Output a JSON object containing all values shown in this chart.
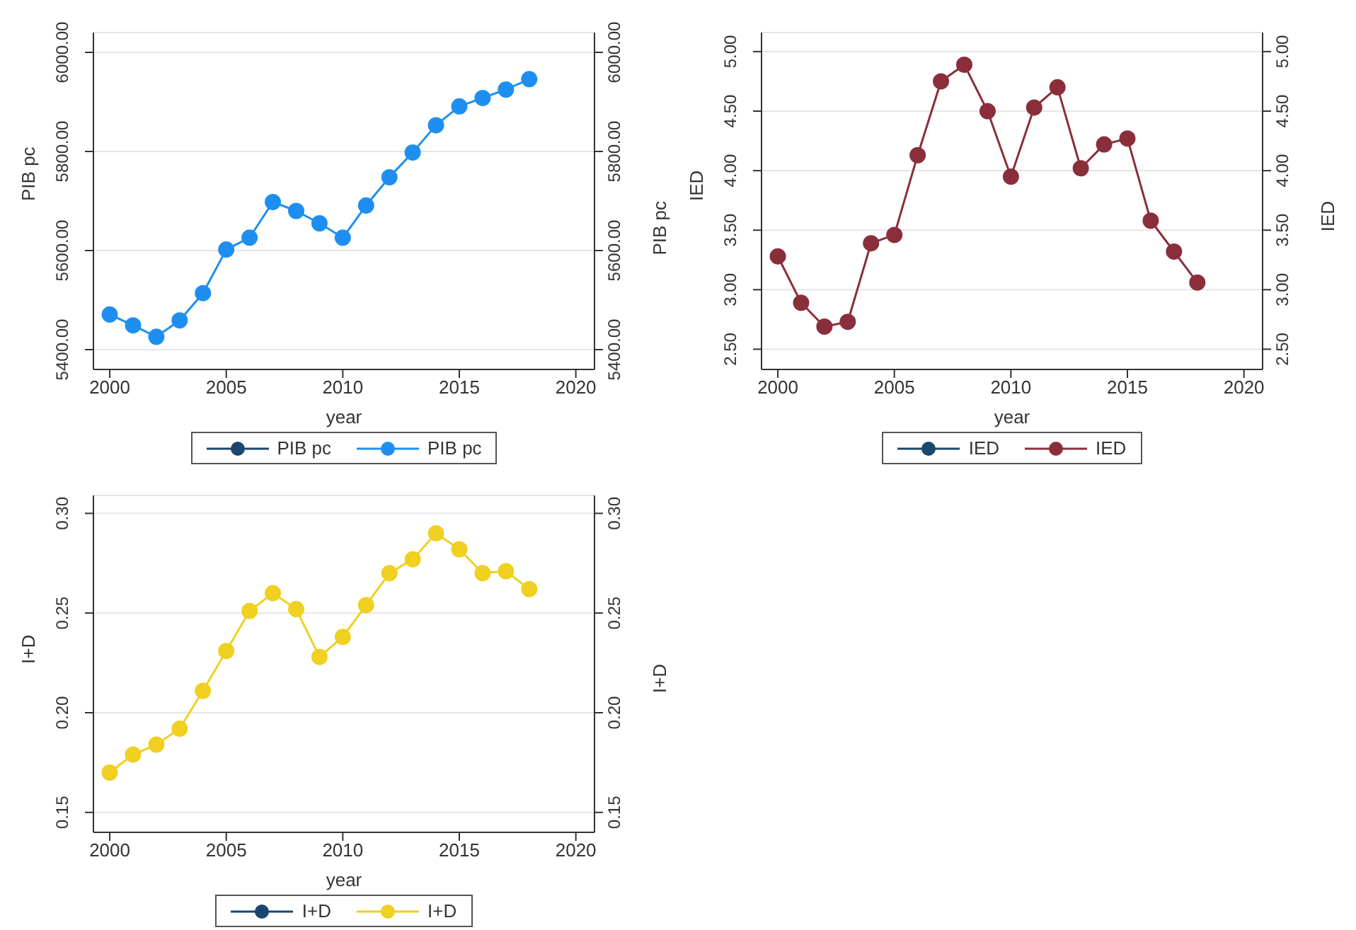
{
  "chart_data": [
    {
      "type": "line",
      "x": [
        2000,
        2001,
        2002,
        2003,
        2004,
        2005,
        2006,
        2007,
        2008,
        2009,
        2010,
        2011,
        2012,
        2013,
        2014,
        2015,
        2016,
        2017,
        2018
      ],
      "xlabel": "year",
      "ylabel": "PIB pc",
      "y2label": "PIB pc",
      "xlim": [
        1999.3,
        2020.8
      ],
      "xticks": [
        2000,
        2005,
        2010,
        2015,
        2020
      ],
      "ylim": [
        5360,
        6040
      ],
      "yticks": [
        {
          "value": 5400,
          "label": "5400.00"
        },
        {
          "value": 5600,
          "label": "5600.00"
        },
        {
          "value": 5800,
          "label": "5800.00"
        },
        {
          "value": 6000,
          "label": "6000.00"
        }
      ],
      "y2lim": [
        5360,
        6040
      ],
      "y2ticks": [
        {
          "value": 5400,
          "label": "5400.00"
        },
        {
          "value": 5600,
          "label": "5600.00"
        },
        {
          "value": 5800,
          "label": "5800.00"
        },
        {
          "value": 6000,
          "label": "6000.00"
        }
      ],
      "grid": "y",
      "legend": "bottom",
      "marker": "circle",
      "line_style": "solid",
      "series": [
        {
          "name": "PIB pc",
          "color": "#1a476f",
          "values": [
            null,
            null,
            null,
            null,
            null,
            null,
            null,
            null,
            null,
            null,
            null,
            null,
            null,
            null,
            null,
            null,
            null,
            null,
            null
          ]
        },
        {
          "name": "PIB pc",
          "color": "#1e8ff0",
          "values": [
            5471,
            5449,
            5426,
            5459,
            5514,
            5602,
            5626,
            5698,
            5680,
            5655,
            5626,
            5691,
            5748,
            5798,
            5853,
            5891,
            5908,
            5925,
            5946
          ]
        }
      ]
    },
    {
      "type": "line",
      "x": [
        2000,
        2001,
        2002,
        2003,
        2004,
        2005,
        2006,
        2007,
        2008,
        2009,
        2010,
        2011,
        2012,
        2013,
        2014,
        2015,
        2016,
        2017,
        2018
      ],
      "xlabel": "year",
      "ylabel": "IED",
      "y2label": "IED",
      "xlim": [
        1999.3,
        2020.8
      ],
      "xticks": [
        2000,
        2005,
        2010,
        2015,
        2020
      ],
      "ylim": [
        2.33,
        5.16
      ],
      "yticks": [
        {
          "value": 2.5,
          "label": "2.50"
        },
        {
          "value": 3,
          "label": "3.00"
        },
        {
          "value": 3.5,
          "label": "3.50"
        },
        {
          "value": 4,
          "label": "4.00"
        },
        {
          "value": 4.5,
          "label": "4.50"
        },
        {
          "value": 5,
          "label": "5.00"
        }
      ],
      "y2lim": [
        2.33,
        5.16
      ],
      "y2ticks": [
        {
          "value": 2.5,
          "label": "2.50"
        },
        {
          "value": 3,
          "label": "3.00"
        },
        {
          "value": 3.5,
          "label": "3.50"
        },
        {
          "value": 4,
          "label": "4.00"
        },
        {
          "value": 4.5,
          "label": "4.50"
        },
        {
          "value": 5,
          "label": "5.00"
        }
      ],
      "grid": "y",
      "legend": "bottom",
      "marker": "circle",
      "line_style": "solid",
      "series": [
        {
          "name": "IED",
          "color": "#1a476f",
          "values": [
            null,
            null,
            null,
            null,
            null,
            null,
            null,
            null,
            null,
            null,
            null,
            null,
            null,
            null,
            null,
            null,
            null,
            null,
            null
          ]
        },
        {
          "name": "IED",
          "color": "#8b2e3c",
          "values": [
            3.28,
            2.89,
            2.69,
            2.73,
            3.39,
            3.46,
            4.13,
            4.75,
            4.89,
            4.5,
            3.95,
            4.53,
            4.7,
            4.02,
            4.22,
            4.27,
            3.58,
            3.32,
            3.06
          ]
        }
      ]
    },
    {
      "type": "line",
      "x": [
        2000,
        2001,
        2002,
        2003,
        2004,
        2005,
        2006,
        2007,
        2008,
        2009,
        2010,
        2011,
        2012,
        2013,
        2014,
        2015,
        2016,
        2017,
        2018
      ],
      "xlabel": "year",
      "ylabel": "I+D",
      "y2label": "I+D",
      "xlim": [
        1999.3,
        2020.8
      ],
      "xticks": [
        2000,
        2005,
        2010,
        2015,
        2020
      ],
      "ylim": [
        0.14,
        0.309
      ],
      "yticks": [
        {
          "value": 0.15,
          "label": "0.15"
        },
        {
          "value": 0.2,
          "label": "0.20"
        },
        {
          "value": 0.25,
          "label": "0.25"
        },
        {
          "value": 0.3,
          "label": "0.30"
        }
      ],
      "y2lim": [
        0.14,
        0.309
      ],
      "y2ticks": [
        {
          "value": 0.15,
          "label": "0.15"
        },
        {
          "value": 0.2,
          "label": "0.20"
        },
        {
          "value": 0.25,
          "label": "0.25"
        },
        {
          "value": 0.3,
          "label": "0.30"
        }
      ],
      "grid": "y",
      "legend": "bottom",
      "marker": "circle",
      "line_style": "solid",
      "series": [
        {
          "name": "I+D",
          "color": "#1a476f",
          "values": [
            null,
            null,
            null,
            null,
            null,
            null,
            null,
            null,
            null,
            null,
            null,
            null,
            null,
            null,
            null,
            null,
            null,
            null,
            null
          ]
        },
        {
          "name": "I+D",
          "color": "#f0d020",
          "values": [
            0.17,
            0.179,
            0.184,
            0.192,
            0.211,
            0.231,
            0.251,
            0.26,
            0.252,
            0.228,
            0.238,
            0.254,
            0.27,
            0.277,
            0.29,
            0.282,
            0.27,
            0.271,
            0.262
          ]
        }
      ]
    }
  ]
}
